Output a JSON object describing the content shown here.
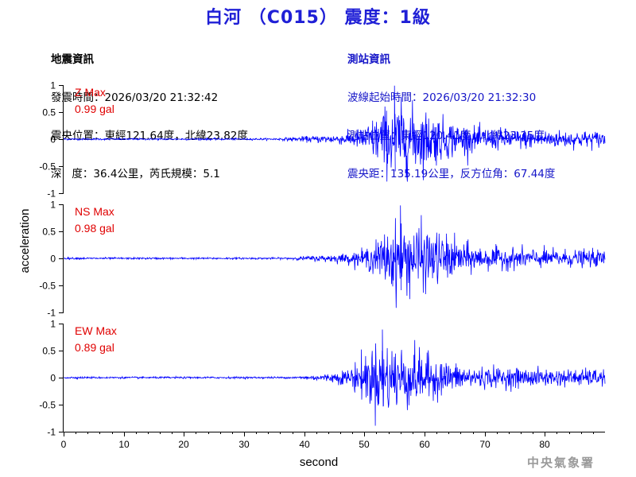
{
  "title": "白河 （C015） 震度：1級",
  "earthquake_info": {
    "header": "地震資訊",
    "origin_time": "發震時間：2026/03/20 21:32:42",
    "epicenter": "震央位置：東經121.64度，北緯23.82度",
    "depth_magnitude": "深   度：36.4公里，芮氏規模：5.1"
  },
  "station_info": {
    "header": "測站資訊",
    "wave_start": "波線起始時間：2026/03/20 21:32:30",
    "station_location": "測站位置：東經120.41度，北緯23.35度",
    "distance_azimuth": "震央距：135.19公里，反方位角：67.44度"
  },
  "footer": "中央氣象署",
  "colors": {
    "title": "#1f1fd6",
    "trace": "#0000ff",
    "max_label": "#e00000",
    "station_info": "#1616c8"
  },
  "chart_data": {
    "type": "line",
    "xlabel": "second",
    "ylabel": "acceleration",
    "xlim": [
      0,
      90
    ],
    "x_ticks": [
      0,
      10,
      20,
      30,
      40,
      50,
      60,
      70,
      80
    ],
    "ylim": [
      -1,
      1
    ],
    "y_ticks": [
      "1",
      "0.5",
      "0",
      "-0.5",
      "-1"
    ],
    "y_tick_values": [
      1,
      0.5,
      0,
      -0.5,
      -1
    ],
    "series": [
      {
        "name": "Z Max",
        "max_label": "0.99 gal",
        "peak": 0.99,
        "onset_s": 35,
        "peak_time_s": 55
      },
      {
        "name": "NS Max",
        "max_label": "0.98 gal",
        "peak": 0.98,
        "onset_s": 37,
        "peak_time_s": 56
      },
      {
        "name": "EW Max",
        "max_label": "0.89 gal",
        "peak": 0.89,
        "onset_s": 38,
        "peak_time_s": 53
      }
    ]
  }
}
